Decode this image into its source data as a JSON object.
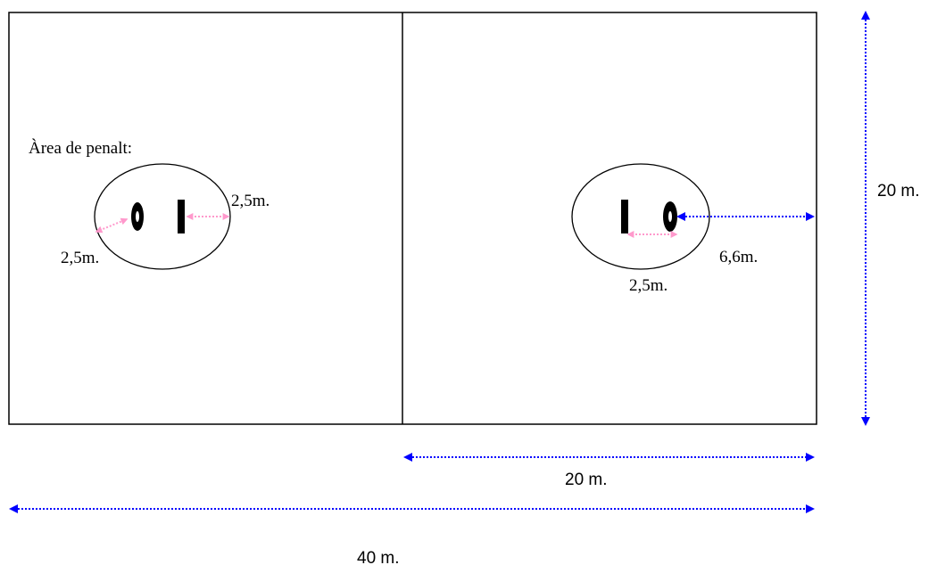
{
  "labels": {
    "penalty_area": "Àrea de penalt:",
    "left_goal_right_distance": "2,5m.",
    "left_goal_left_distance": "2,5m.",
    "right_goal_distance": "2,5m.",
    "right_goal_to_sideline": "6,6m.",
    "court_height": "20 m.",
    "half_width": "20 m.",
    "full_width": "40 m."
  },
  "colors": {
    "lines": "#000000",
    "dimension_arrows": "#0000ff",
    "detail_arrows": "#ff99cc",
    "background": "#ffffff"
  }
}
